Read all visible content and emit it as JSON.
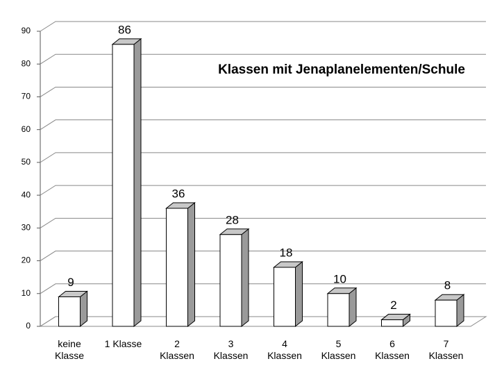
{
  "chart_data": {
    "type": "bar",
    "title": "Klassen mit Jenaplanelementen/Schule",
    "categories": [
      "keine Klasse",
      "1 Klasse",
      "2 Klassen",
      "3 Klassen",
      "4 Klassen",
      "5 Klassen",
      "6 Klassen",
      "7 Klassen"
    ],
    "values": [
      9,
      86,
      36,
      28,
      18,
      10,
      2,
      8
    ],
    "color": "#ffffff",
    "ylim": [
      0,
      90
    ],
    "yticks": [
      0,
      10,
      20,
      30,
      40,
      50,
      60,
      70,
      80,
      90
    ],
    "grid": true
  }
}
